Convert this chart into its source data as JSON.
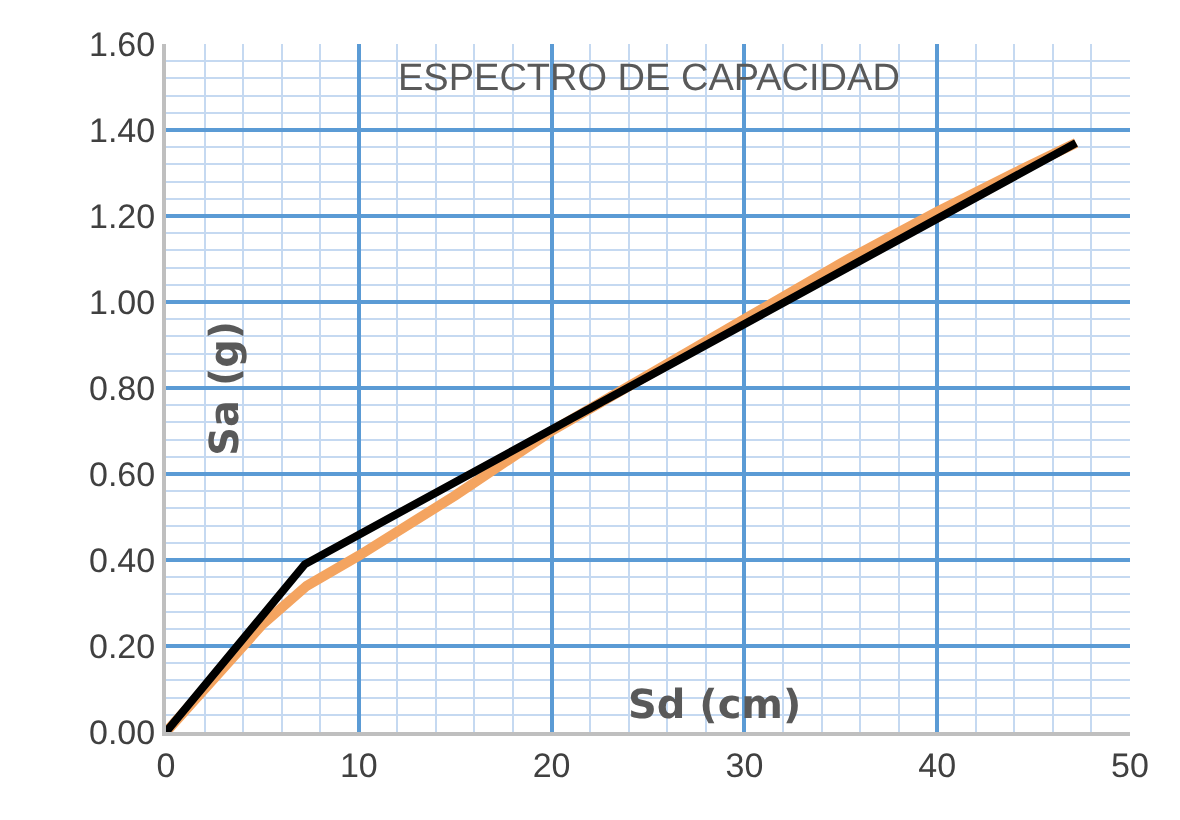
{
  "chart_data": {
    "type": "line",
    "title": "ESPECTRO DE CAPACIDAD",
    "xlabel": "Sd (cm)",
    "ylabel": "Sa (g)",
    "series": [
      {
        "color": "#f4a460",
        "x": [
          0,
          5,
          7.3,
          10,
          15,
          20,
          25,
          30,
          35,
          40,
          44,
          47.2
        ],
        "values": [
          0,
          0.25,
          0.34,
          0.41,
          0.55,
          0.7,
          0.83,
          0.96,
          1.09,
          1.21,
          1.3,
          1.37
        ]
      },
      {
        "color": "#000000",
        "x": [
          0,
          7.2,
          47.2
        ],
        "values": [
          0,
          0.39,
          1.37
        ]
      }
    ],
    "xlim": [
      0,
      50
    ],
    "xticks": [
      0,
      {
        "value": 2,
        "label": null
      },
      {
        "value": 4,
        "label": null
      },
      {
        "value": 6,
        "label": null
      },
      {
        "value": 8,
        "label": null
      },
      10,
      {
        "value": 12,
        "label": null
      },
      {
        "value": 14,
        "label": null
      },
      {
        "value": 16,
        "label": null
      },
      {
        "value": 18,
        "label": null
      },
      20,
      {
        "value": 22,
        "label": null
      },
      {
        "value": 24,
        "label": null
      },
      {
        "value": 26,
        "label": null
      },
      {
        "value": 28,
        "label": null
      },
      30,
      {
        "value": 32,
        "label": null
      },
      {
        "value": 34,
        "label": null
      },
      {
        "value": 36,
        "label": null
      },
      {
        "value": 38,
        "label": null
      },
      40,
      {
        "value": 42,
        "label": null
      },
      {
        "value": 44,
        "label": null
      },
      {
        "value": 46,
        "label": null
      },
      {
        "value": 48,
        "label": null
      },
      50
    ],
    "ylim": [
      0,
      1.6
    ],
    "yticks": [
      {
        "value": 0,
        "label": "0.00"
      },
      {
        "value": 0.04,
        "label": null
      },
      {
        "value": 0.08,
        "label": null
      },
      {
        "value": 0.12,
        "label": null
      },
      {
        "value": 0.16,
        "label": null
      },
      {
        "value": 0.2,
        "label": "0.20"
      },
      {
        "value": 0.24,
        "label": null
      },
      {
        "value": 0.28,
        "label": null
      },
      {
        "value": 0.32,
        "label": null
      },
      {
        "value": 0.36,
        "label": null
      },
      {
        "value": 0.4,
        "label": "0.40"
      },
      {
        "value": 0.44,
        "label": null
      },
      {
        "value": 0.48,
        "label": null
      },
      {
        "value": 0.52,
        "label": null
      },
      {
        "value": 0.56,
        "label": null
      },
      {
        "value": 0.6,
        "label": "0.60"
      },
      {
        "value": 0.64,
        "label": null
      },
      {
        "value": 0.68,
        "label": null
      },
      {
        "value": 0.72,
        "label": null
      },
      {
        "value": 0.76,
        "label": null
      },
      {
        "value": 0.8,
        "label": "0.80"
      },
      {
        "value": 0.84,
        "label": null
      },
      {
        "value": 0.88,
        "label": null
      },
      {
        "value": 0.92,
        "label": null
      },
      {
        "value": 0.96,
        "label": null
      },
      {
        "value": 1.0,
        "label": "1.00"
      },
      {
        "value": 1.04,
        "label": null
      },
      {
        "value": 1.08,
        "label": null
      },
      {
        "value": 1.12,
        "label": null
      },
      {
        "value": 1.16,
        "label": null
      },
      {
        "value": 1.2,
        "label": "1.20"
      },
      {
        "value": 1.24,
        "label": null
      },
      {
        "value": 1.28,
        "label": null
      },
      {
        "value": 1.32,
        "label": null
      },
      {
        "value": 1.36,
        "label": null
      },
      {
        "value": 1.4,
        "label": "1.40"
      },
      {
        "value": 1.44,
        "label": null
      },
      {
        "value": 1.48,
        "label": null
      },
      {
        "value": 1.52,
        "label": null
      },
      {
        "value": 1.56,
        "label": null
      },
      {
        "value": 1.6,
        "label": "1.60"
      }
    ],
    "grid": true,
    "marker": "none",
    "line_style": "solid"
  }
}
